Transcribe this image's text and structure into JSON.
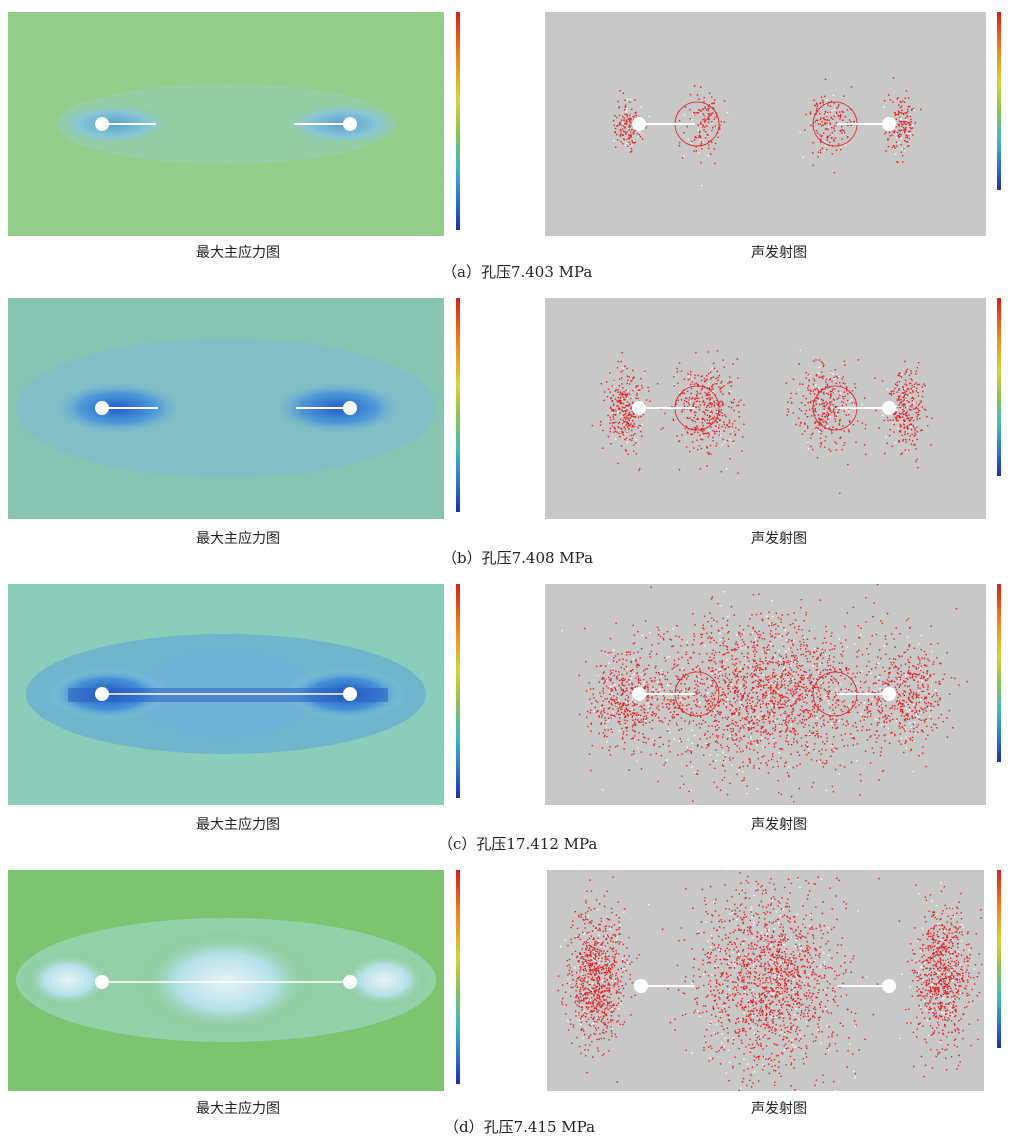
{
  "rows": [
    {
      "id": "a",
      "stress_label": "最大主应力图",
      "ae_label": "声发射图",
      "caption": "（a）孔压7.403 MPa",
      "stress_cbar_ticks": [
        "",
        "",
        "",
        "",
        "",
        ""
      ],
      "ae_cbar_ticks": [
        "",
        "",
        "",
        "",
        ""
      ]
    },
    {
      "id": "b",
      "stress_label": "最大主应力图",
      "ae_label": "声发射图",
      "caption": "（b）孔压7.408 MPa",
      "stress_cbar_ticks": [
        "",
        "",
        "",
        "",
        "",
        ""
      ],
      "ae_cbar_ticks": [
        "",
        "",
        "",
        "",
        ""
      ]
    },
    {
      "id": "c",
      "stress_label": "最大主应力图",
      "ae_label": "声发射图",
      "caption": "（c）孔压17.412 MPa",
      "stress_cbar_ticks": [
        "",
        "",
        "",
        "",
        "",
        ""
      ],
      "ae_cbar_ticks": [
        "",
        "",
        "",
        "",
        ""
      ]
    },
    {
      "id": "d",
      "stress_label": "最大主应力图",
      "ae_label": "声发射图",
      "caption": "（d）孔压7.415 MPa",
      "stress_cbar_ticks": [
        "",
        "",
        "",
        "",
        "",
        ""
      ],
      "ae_cbar_ticks": [
        "",
        "",
        "",
        "",
        ""
      ]
    }
  ],
  "colors": {
    "stress_bg": "#8cc873",
    "stress_blue": "#2f7fd6",
    "stress_light": "#a8d8e6",
    "ae_bg": "#c8c8c8",
    "ae_red": "#e52222",
    "hole": "#ffffff"
  }
}
